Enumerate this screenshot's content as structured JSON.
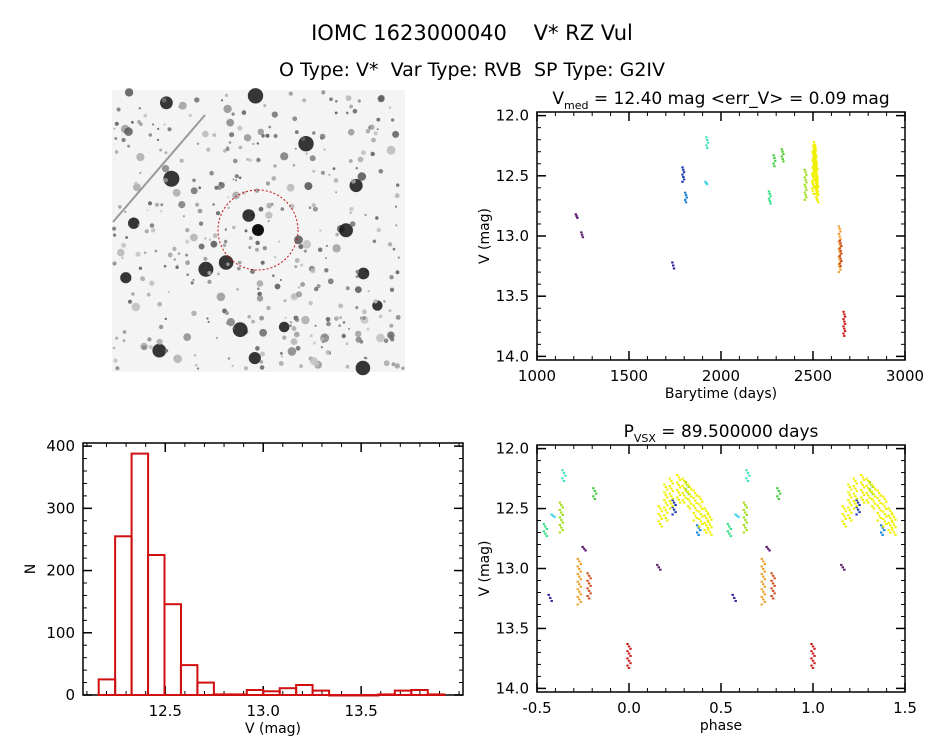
{
  "header": {
    "title": "IOMC 1623000040    V* RZ Vul",
    "subtitle": "O Type: V*  Var Type: RVB  SP Type: G2IV"
  },
  "colors": {
    "hist": "#d01010",
    "axes": "#000000",
    "circle": "#c01010"
  },
  "chart_data": [
    {
      "id": "finder-image",
      "type": "image",
      "description_marks": "star field with dashed red circle around target"
    },
    {
      "id": "light-curve",
      "type": "scatter",
      "title_main": "V",
      "title_sub": "med",
      "title_rest": " = 12.40 mag <err_V> = 0.09 mag",
      "xlabel": "Barytime (days)",
      "ylabel": "V (mag)",
      "xlim": [
        1000,
        3000
      ],
      "ylim": [
        11.97,
        14.03
      ],
      "y_reversed": true,
      "xticks": [
        1000,
        1500,
        2000,
        2500,
        3000
      ],
      "xtick_labels": [
        "1000",
        "1500",
        "2000",
        "2500",
        "3000"
      ],
      "yticks": [
        12.0,
        12.5,
        13.0,
        13.5,
        14.0
      ],
      "ytick_labels": [
        "12.0",
        "12.5",
        "13.0",
        "13.5",
        "14.0"
      ]
    },
    {
      "id": "histogram",
      "type": "bar",
      "xlabel": "V (mag)",
      "ylabel": "N",
      "xlim": [
        12.08,
        14.02
      ],
      "ylim": [
        0,
        405
      ],
      "bin_start": 12.16,
      "bin_width": 0.084,
      "values": [
        25,
        255,
        388,
        225,
        146,
        48,
        20,
        1,
        1,
        8,
        6,
        11,
        16,
        7,
        0,
        0,
        0,
        1,
        7,
        8,
        1
      ],
      "xticks": [
        12.5,
        13.0,
        13.5
      ],
      "xtick_labels": [
        "12.5",
        "13.0",
        "13.5"
      ],
      "yticks": [
        0,
        100,
        200,
        300,
        400
      ],
      "ytick_labels": [
        "0",
        "100",
        "200",
        "300",
        "400"
      ]
    },
    {
      "id": "phase-curve",
      "type": "scatter",
      "title_main": "P",
      "title_sub": "VSX",
      "title_rest": " = 89.500000 days",
      "xlabel": "phase",
      "ylabel": "V (mag)",
      "xlim": [
        -0.5,
        1.5
      ],
      "ylim": [
        11.97,
        14.03
      ],
      "y_reversed": true,
      "xticks": [
        -0.5,
        0.0,
        0.5,
        1.0,
        1.5
      ],
      "xtick_labels": [
        "-0.5",
        "0.0",
        "0.5",
        "1.0",
        "1.5"
      ],
      "yticks": [
        12.0,
        12.5,
        13.0,
        13.5,
        14.0
      ],
      "ytick_labels": [
        "12.0",
        "12.5",
        "13.0",
        "13.5",
        "14.0"
      ]
    }
  ],
  "observations": [
    {
      "t": 1215,
      "phase": 0.756,
      "v": [
        12.82,
        12.85
      ],
      "color": "#5a1a6e"
    },
    {
      "t": 1245,
      "phase": 0.162,
      "v": [
        12.97,
        13.01
      ],
      "color": "#5a1a6e"
    },
    {
      "t": 1740,
      "phase": 0.572,
      "v": [
        13.22,
        13.27
      ],
      "color": "#2a1aa0"
    },
    {
      "t": 1795,
      "phase": 0.245,
      "v": [
        12.43,
        12.55
      ],
      "color": "#1a3ab0"
    },
    {
      "t": 1810,
      "phase": 0.379,
      "v": [
        12.64,
        12.72
      ],
      "color": "#1a80d8"
    },
    {
      "t": 1925,
      "phase": 0.647,
      "v": [
        12.18,
        12.27
      ],
      "color": "#40e0c0"
    },
    {
      "t": 1920,
      "phase": 0.587,
      "v": [
        12.55,
        12.57
      ],
      "color": "#40d0e8"
    },
    {
      "t": 2265,
      "phase": 0.545,
      "v": [
        12.63,
        12.73
      ],
      "color": "#30e080"
    },
    {
      "t": 2290,
      "phase": 0.814,
      "v": [
        12.33,
        12.42
      ],
      "color": "#40d040"
    },
    {
      "t": 2335,
      "phase": 0.317,
      "v": [
        12.28,
        12.38
      ],
      "color": "#50d030"
    },
    {
      "t": 2460,
      "phase": 0.632,
      "v": [
        12.45,
        12.7
      ],
      "color": "#a0e020"
    },
    {
      "t": 2500,
      "phase": 0.17,
      "v": [
        12.48,
        12.65
      ],
      "color": "#f0f000"
    },
    {
      "t": 2503,
      "phase": 0.2,
      "v": [
        12.3,
        12.6
      ],
      "color": "#f0f000"
    },
    {
      "t": 2505,
      "phase": 0.23,
      "v": [
        12.25,
        12.5
      ],
      "color": "#f0f000"
    },
    {
      "t": 2509,
      "phase": 0.27,
      "v": [
        12.22,
        12.45
      ],
      "color": "#f0f000"
    },
    {
      "t": 2512,
      "phase": 0.3,
      "v": [
        12.25,
        12.45
      ],
      "color": "#f0f000"
    },
    {
      "t": 2514,
      "phase": 0.33,
      "v": [
        12.3,
        12.5
      ],
      "color": "#f0f000"
    },
    {
      "t": 2517,
      "phase": 0.36,
      "v": [
        12.35,
        12.6
      ],
      "color": "#f0f000"
    },
    {
      "t": 2520,
      "phase": 0.39,
      "v": [
        12.4,
        12.65
      ],
      "color": "#f0f000"
    },
    {
      "t": 2522,
      "phase": 0.42,
      "v": [
        12.5,
        12.7
      ],
      "color": "#f0f000"
    },
    {
      "t": 2524,
      "phase": 0.44,
      "v": [
        12.55,
        12.72
      ],
      "color": "#f0f000"
    },
    {
      "t": 2645,
      "phase": 0.73,
      "v": [
        12.92,
        13.3
      ],
      "color": "#f0a030"
    },
    {
      "t": 2650,
      "phase": 0.783,
      "v": [
        13.04,
        13.25
      ],
      "color": "#d05020"
    },
    {
      "t": 2670,
      "phase": 0.0,
      "v": [
        13.63,
        13.83
      ],
      "color": "#d02020"
    }
  ]
}
